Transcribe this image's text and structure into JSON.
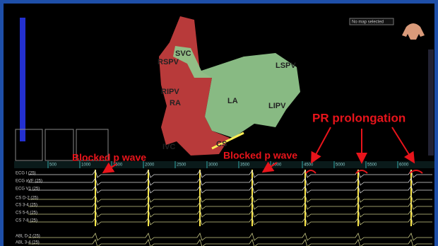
{
  "map": {
    "status": "No map selected",
    "labels": {
      "svc": "SVC",
      "rspv": "RSPV",
      "ripv": "RIPV",
      "ra": "RA",
      "la": "LA",
      "lspv": "LSPV",
      "lipv": "LIPV",
      "ivc": "IVC",
      "cs": "CS"
    }
  },
  "annotations": {
    "pr": "PR prolongation",
    "blocked_1": "Blocked p wave",
    "blocked_2": "Blocked p wave"
  },
  "timeline": {
    "ticks": [
      "500",
      "1000",
      "1500",
      "2000",
      "2500",
      "3000",
      "3500",
      "4000",
      "4500",
      "5000",
      "5500",
      "6000"
    ]
  },
  "channels": [
    "ECG I (25)",
    "ECG aVF (25)",
    "ECG V1 (25)",
    "CS D-2 (25)",
    "CS 3-4 (25)",
    "CS 5-6 (25)",
    "CS 7-8 (25)",
    "ABL D-2 (25)",
    "ABL 3-4 (25)"
  ]
}
